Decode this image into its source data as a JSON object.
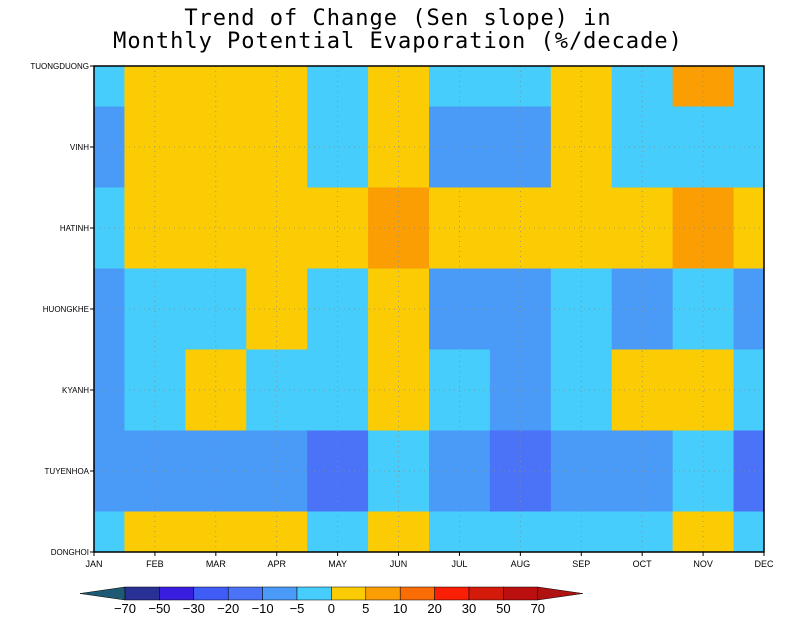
{
  "chart_data": {
    "type": "heatmap",
    "title": [
      "Trend of Change (Sen slope) in",
      "Monthly Potential Evaporation (%/decade)"
    ],
    "x_categories": [
      "JAN",
      "FEB",
      "MAR",
      "APR",
      "MAY",
      "JUN",
      "JUL",
      "AUG",
      "SEP",
      "OCT",
      "NOV",
      "DEC"
    ],
    "y_categories": [
      "TUONGDUONG",
      "VINH",
      "HATINH",
      "HUONGKHE",
      "KYANH",
      "TUYENHOA",
      "DONGHOI"
    ],
    "grid": true,
    "colorbar": {
      "position": "bottom",
      "levels": [
        "-70",
        "-50",
        "-30",
        "-20",
        "-10",
        "-5",
        "0",
        "5",
        "10",
        "20",
        "30",
        "50",
        "70"
      ],
      "colors": [
        "#1f5a75",
        "#2a3196",
        "#3a1ee0",
        "#3f5cf7",
        "#4b73f7",
        "#4a9af7",
        "#46cdfc",
        "#fbcc04",
        "#fa9e04",
        "#fa6c04",
        "#f91e04",
        "#d41a0b",
        "#bb0e0e",
        "#b01212"
      ]
    },
    "cells": [
      [
        "-5~0",
        "0~5",
        "0~5",
        "0~5",
        "-5~0",
        "0~5",
        "-5~0",
        "-5~0",
        "0~5",
        "-5~0",
        "5~10",
        "-5~0"
      ],
      [
        "-10~-5",
        "0~5",
        "0~5",
        "0~5",
        "-5~0",
        "0~5",
        "-10~-5",
        "-10~-5",
        "0~5",
        "-5~0",
        "-5~0",
        "-5~0"
      ],
      [
        "-5~0",
        "0~5",
        "0~5",
        "0~5",
        "0~5",
        "5~10",
        "0~5",
        "0~5",
        "0~5",
        "0~5",
        "5~10",
        "0~5"
      ],
      [
        "-10~-5",
        "-5~0",
        "-5~0",
        "0~5",
        "-5~0",
        "0~5",
        "-10~-5",
        "-10~-5",
        "-5~0",
        "-10~-5",
        "-5~0",
        "-10~-5"
      ],
      [
        "-10~-5",
        "-5~0",
        "0~5",
        "-5~0",
        "-5~0",
        "0~5",
        "-5~0",
        "-10~-5",
        "-5~0",
        "0~5",
        "0~5",
        "-5~0"
      ],
      [
        "-10~-5",
        "-10~-5",
        "-10~-5",
        "-10~-5",
        "-20~-10",
        "-5~0",
        "-10~-5",
        "-20~-10",
        "-10~-5",
        "-10~-5",
        "-5~0",
        "-20~-10"
      ],
      [
        "-5~0",
        "0~5",
        "0~5",
        "0~5",
        "-5~0",
        "0~5",
        "-5~0",
        "-5~0",
        "-5~0",
        "-5~0",
        "0~5",
        "-5~0"
      ]
    ],
    "cell_colors": {
      "-20~-10": "#4b73f7",
      "-10~-5": "#4a9af7",
      "-5~0": "#46cdfc",
      "0~5": "#fbcc04",
      "5~10": "#fa9e04"
    }
  }
}
